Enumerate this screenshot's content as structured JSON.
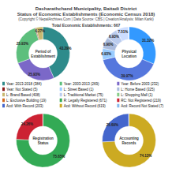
{
  "title": "Dasharathchand Municipality, Baitadi District\nStatus of Economic Establishments (Economic Census 2018)",
  "subtitle": "(Copyright © NepalArchives.Com | Data Source: CBS | Creation/Analysis: Milan Karki)",
  "annotations": [
    "Total Economic Establishments: 667"
  ],
  "legend_items": [
    {
      "label": "Year: 2013-2018 (384)",
      "color": "#2e8b8b"
    },
    {
      "label": "Year: 2003-2013 (269)",
      "color": "#5dbf7d"
    },
    {
      "label": "Year: Before 2003 (232)",
      "color": "#7b68c8"
    },
    {
      "label": "Year: Not Stated (5)",
      "color": "#8b1a1a"
    },
    {
      "label": "L: Street Based (1)",
      "color": "#99ccff"
    },
    {
      "label": "L: Home Based (325)",
      "color": "#aabbdd"
    },
    {
      "label": "L: Brand Based (408)",
      "color": "#c8b870"
    },
    {
      "label": "L: Traditional Market (75)",
      "color": "#bbccee"
    },
    {
      "label": "L: Shopping Mall (1)",
      "color": "#88cc88"
    },
    {
      "label": "L: Exclusive Building (19)",
      "color": "#d2691e"
    },
    {
      "label": "R: Legally Registered (671)",
      "color": "#33aa55"
    },
    {
      "label": "RC: Not Registered (219)",
      "color": "#cc2233"
    },
    {
      "label": "Acd: With Record (203)",
      "color": "#4466cc"
    },
    {
      "label": "Acd: Without Record (619)",
      "color": "#ccaa22"
    },
    {
      "label": "Acd: Record Not Stated (7)",
      "color": "#88bbee"
    }
  ],
  "chart_data": [
    {
      "type": "pie",
      "title": "Period of\nEstablishment",
      "values": [
        43.29,
        25.93,
        25.93,
        0.58,
        4.27
      ],
      "value_labels": [
        "43.29%",
        "25.93%",
        "25.93%",
        null,
        "4.27%"
      ],
      "data_labels": true,
      "colors": [
        "#2e8b8b",
        "#7b68c8",
        "#5dbf7d",
        "#8b1a1a",
        "#c8b870"
      ]
    },
    {
      "type": "pie",
      "title": "Physical\nLocation",
      "values": [
        31.32,
        39.97,
        6.93,
        6.9,
        6.93,
        7.51,
        0.44
      ],
      "value_labels": [
        "31.32%",
        "39.97%",
        "6.93%",
        "6.90%",
        "6.93%",
        "7.51%",
        null
      ],
      "data_labels": true,
      "colors": [
        "#3399ff",
        "#5577dd",
        "#99ccff",
        "#aabbdd",
        "#bbccee",
        "#ccddff",
        "#ddeeff"
      ]
    },
    {
      "type": "pie",
      "title": "Registration\nStatus",
      "values": [
        75.65,
        24.26,
        0.09
      ],
      "value_labels": [
        "75.65%",
        "24.26%",
        null
      ],
      "data_labels": true,
      "colors": [
        "#33aa55",
        "#cc2233",
        "#88cc88"
      ]
    },
    {
      "type": "pie",
      "title": "Accounting\nRecords",
      "values": [
        74.13,
        25.69,
        0.18
      ],
      "value_labels": [
        "74.13%",
        "25.69%",
        null
      ],
      "data_labels": true,
      "colors": [
        "#ccaa22",
        "#4466cc",
        "#88bbee"
      ]
    }
  ]
}
